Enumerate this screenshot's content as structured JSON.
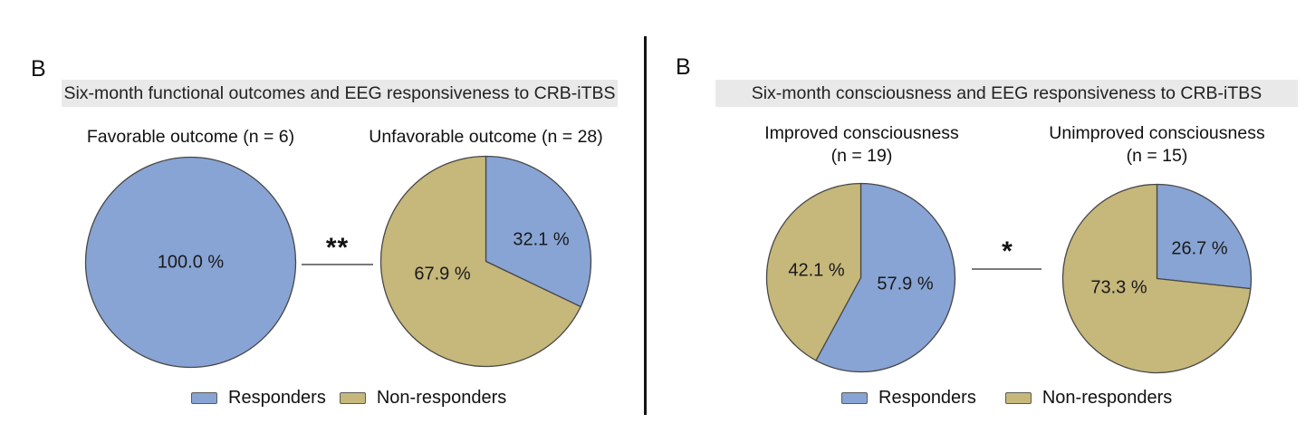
{
  "figure": {
    "panels": [
      {
        "label": "B",
        "header": "Six-month functional outcomes and EEG responsiveness to CRB-iTBS",
        "significance": "**",
        "legend_position": "bottom",
        "legend": [
          {
            "name": "Responders",
            "color_key": "responders"
          },
          {
            "name": "Non-responders",
            "color_key": "non_responders"
          }
        ]
      },
      {
        "label": "B",
        "header": "Six-month consciousness and EEG responsiveness to CRB-iTBS",
        "significance": "*",
        "legend_position": "bottom",
        "legend": [
          {
            "name": "Responders",
            "color_key": "responders"
          },
          {
            "name": "Non-responders",
            "color_key": "non_responders"
          }
        ]
      }
    ]
  },
  "colors": {
    "responders": "#88A4D4",
    "non_responders": "#C6B77B",
    "slice_border": "#474747",
    "header_bg": "#E9E9E9",
    "sig_line": "#7a7a7a",
    "divider": "#141414",
    "label_text": "#1a1a1a"
  },
  "chart_data": [
    {
      "type": "pie",
      "panel": 0,
      "title": "Favorable outcome (n = 6)",
      "title_lines": [
        "Favorable outcome (n = 6)"
      ],
      "n": 6,
      "start_angle_deg": -90,
      "direction": "clockwise",
      "slices": [
        {
          "name": "Responders",
          "pct": 100.0,
          "label": "100.0 %",
          "color_key": "responders",
          "label_offset": [
            0,
            0
          ]
        }
      ]
    },
    {
      "type": "pie",
      "panel": 0,
      "title": "Unfavorable outcome (n = 28)",
      "title_lines": [
        "Unfavorable outcome (n = 28)"
      ],
      "n": 28,
      "start_angle_deg": -90,
      "direction": "clockwise",
      "slices": [
        {
          "name": "Responders",
          "pct": 32.1,
          "label": "32.1 %",
          "color_key": "responders",
          "label_offset": [
            61,
            -24
          ]
        },
        {
          "name": "Non-responders",
          "pct": 67.9,
          "label": "67.9 %",
          "color_key": "non_responders",
          "label_offset": [
            -48,
            14
          ]
        }
      ]
    },
    {
      "type": "pie",
      "panel": 1,
      "title": "Improved consciousness (n = 19)",
      "title_lines": [
        "Improved consciousness",
        "(n = 19)"
      ],
      "n": 19,
      "start_angle_deg": -90,
      "direction": "clockwise",
      "slices": [
        {
          "name": "Responders",
          "pct": 57.9,
          "label": "57.9 %",
          "color_key": "responders",
          "label_offset": [
            49,
            7
          ]
        },
        {
          "name": "Non-responders",
          "pct": 42.1,
          "label": "42.1 %",
          "color_key": "non_responders",
          "label_offset": [
            -49,
            -8
          ]
        }
      ]
    },
    {
      "type": "pie",
      "panel": 1,
      "title": "Unimproved consciousness (n = 15)",
      "title_lines": [
        "Unimproved consciousness",
        "(n = 15)"
      ],
      "n": 15,
      "start_angle_deg": -90,
      "direction": "clockwise",
      "slices": [
        {
          "name": "Responders",
          "pct": 26.7,
          "label": "26.7 %",
          "color_key": "responders",
          "label_offset": [
            47,
            -33
          ]
        },
        {
          "name": "Non-responders",
          "pct": 73.3,
          "label": "73.3 %",
          "color_key": "non_responders",
          "label_offset": [
            -42,
            10
          ]
        }
      ]
    }
  ]
}
